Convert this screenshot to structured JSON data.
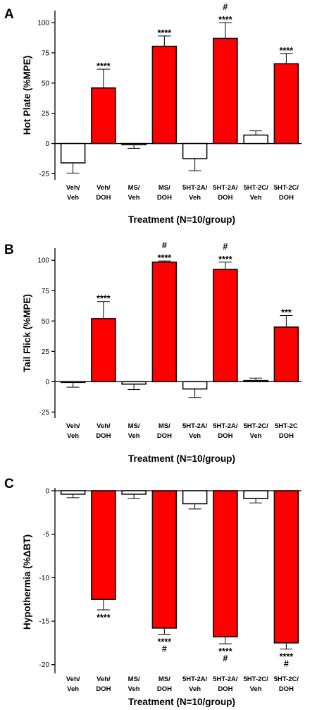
{
  "colors": {
    "treated": "#ff0000",
    "control": "#ffffff"
  },
  "chart_data": [
    {
      "type": "bar",
      "panel_label": "A",
      "ylabel": "Hot Plate (%MPE)",
      "xlabel": "Treatment (N=10/group)",
      "categories": [
        [
          "Veh/",
          "Veh"
        ],
        [
          "Veh/",
          "DOH"
        ],
        [
          "MS/",
          "Veh"
        ],
        [
          "MS/",
          "DOH"
        ],
        [
          "5HT-2A/",
          "Veh"
        ],
        [
          "5HT-2A/",
          "DOH"
        ],
        [
          "5HT-2C/",
          "Veh"
        ],
        [
          "5HT-2C/",
          "DOH"
        ]
      ],
      "values": [
        -16,
        46,
        -1,
        80.5,
        -12.5,
        87,
        7,
        66
      ],
      "errors": [
        8.5,
        15.5,
        3,
        8.5,
        10,
        13,
        3.5,
        8.5
      ],
      "treated": [
        false,
        true,
        false,
        true,
        false,
        true,
        false,
        true
      ],
      "annotations": [
        [],
        [
          "****"
        ],
        [],
        [
          "****"
        ],
        [],
        [
          "#",
          "****"
        ],
        [],
        [
          "****"
        ]
      ],
      "ylim": [
        -30,
        110
      ],
      "yticks": [
        -25,
        0,
        25,
        50,
        75,
        100
      ]
    },
    {
      "type": "bar",
      "panel_label": "B",
      "ylabel": "Tail Flick (%MPE)",
      "xlabel": "Treatment (N=10/group)",
      "categories": [
        [
          "Veh/",
          "Veh"
        ],
        [
          "Veh/",
          "DOH"
        ],
        [
          "MS/",
          "Veh"
        ],
        [
          "MS/",
          "DOH"
        ],
        [
          "5HT-2A/",
          "Veh"
        ],
        [
          "5HT-2A/",
          "DOH"
        ],
        [
          "5HT-2C/",
          "Veh"
        ],
        [
          "5HT-2C",
          "DOH"
        ]
      ],
      "values": [
        -0.5,
        52,
        -2,
        98.5,
        -6,
        92.5,
        1,
        45
      ],
      "errors": [
        4,
        14,
        4.5,
        1,
        7,
        6,
        2,
        9.5
      ],
      "treated": [
        false,
        true,
        false,
        true,
        false,
        true,
        false,
        true
      ],
      "annotations": [
        [],
        [
          "****"
        ],
        [],
        [
          "#",
          "****"
        ],
        [],
        [
          "#",
          "****"
        ],
        [],
        [
          "***"
        ]
      ],
      "ylim": [
        -30,
        110
      ],
      "yticks": [
        -25,
        0,
        25,
        50,
        75,
        100
      ]
    },
    {
      "type": "bar",
      "panel_label": "C",
      "ylabel": "Hypothermia (%ΔBT)",
      "xlabel": "Treatment (N=10/group)",
      "categories": [
        [
          "Veh/",
          "Veh"
        ],
        [
          "Veh/",
          "DOH"
        ],
        [
          "MS/",
          "Veh"
        ],
        [
          "MS/",
          "DOH"
        ],
        [
          "5HT-2A/",
          "Veh"
        ],
        [
          "5HT-2A/",
          "DOH"
        ],
        [
          "5HT-2C/",
          "Veh"
        ],
        [
          "5HT-2C/",
          "DOH"
        ]
      ],
      "values": [
        -0.4,
        -12.5,
        -0.4,
        -15.8,
        -1.5,
        -16.8,
        -0.9,
        -17.5
      ],
      "errors": [
        0.4,
        1.2,
        0.5,
        0.7,
        0.6,
        0.8,
        0.5,
        0.7
      ],
      "treated": [
        false,
        true,
        false,
        true,
        false,
        true,
        false,
        true
      ],
      "annotations": [
        [],
        [
          "****"
        ],
        [],
        [
          "****",
          "#"
        ],
        [],
        [
          "****",
          "#"
        ],
        [],
        [
          "****",
          "#"
        ]
      ],
      "ylim": [
        -21,
        0
      ],
      "yticks": [
        0,
        -5,
        -10,
        -15,
        -20
      ]
    }
  ]
}
